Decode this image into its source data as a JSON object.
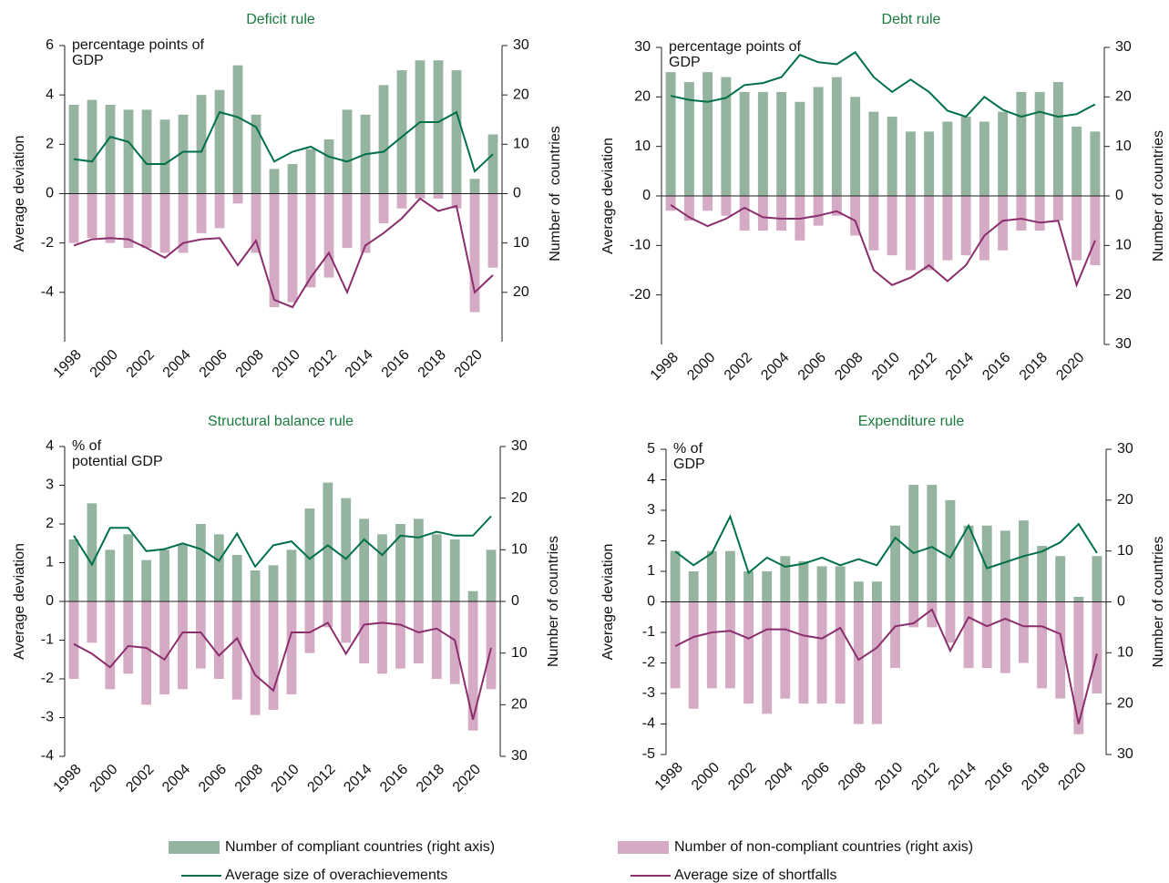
{
  "chart_data": [
    {
      "type": "combo",
      "title": "Deficit rule",
      "unit_label": [
        "percentage points of",
        "GDP"
      ],
      "ylabel": "Average deviation",
      "y2label": "Number of  countries",
      "x": [
        1998,
        1999,
        2000,
        2001,
        2002,
        2003,
        2004,
        2005,
        2006,
        2007,
        2008,
        2009,
        2010,
        2011,
        2012,
        2013,
        2014,
        2015,
        2016,
        2017,
        2018,
        2019,
        2020,
        2021
      ],
      "xticks": [
        1998,
        2000,
        2002,
        2004,
        2006,
        2008,
        2010,
        2012,
        2014,
        2016,
        2018,
        2020
      ],
      "ylim": [
        -6,
        6
      ],
      "yticks": [
        -4,
        -2,
        0,
        2,
        4,
        6
      ],
      "y2lim": [
        -30,
        30
      ],
      "y2ticks": [
        {
          "value": -20,
          "label": "20"
        },
        {
          "value": -10,
          "label": "10"
        },
        0,
        10,
        20,
        30
      ],
      "series": [
        {
          "name": "Number of compliant countries (right axis)",
          "type": "bar",
          "axis": "y2",
          "color": "#94b4a0",
          "values": [
            18,
            19,
            18,
            17,
            17,
            15,
            16,
            20,
            21,
            26,
            16,
            5,
            6,
            9,
            11,
            17,
            16,
            22,
            25,
            27,
            27,
            25,
            3,
            12
          ]
        },
        {
          "name": "Number of non-compliant countries (right axis)",
          "type": "bar",
          "axis": "y2",
          "color": "#d5aac4",
          "values": [
            -10,
            -9,
            -10,
            -11,
            -11,
            -12,
            -12,
            -8,
            -7,
            -2,
            -12,
            -23,
            -22,
            -19,
            -17,
            -11,
            -12,
            -6,
            -3,
            -1,
            -1,
            -3,
            -24,
            -15
          ]
        },
        {
          "name": "Average size of overachievements",
          "type": "line",
          "color": "#00704a",
          "values": [
            1.4,
            1.3,
            2.3,
            2.1,
            1.2,
            1.2,
            1.7,
            1.7,
            3.3,
            3.1,
            2.7,
            1.3,
            1.7,
            1.9,
            1.5,
            1.3,
            1.6,
            1.7,
            2.3,
            2.9,
            2.9,
            3.3,
            0.9,
            1.6
          ]
        },
        {
          "name": "Average size of shortfalls",
          "type": "line",
          "color": "#8a2e6e",
          "values": [
            -2.1,
            -1.85,
            -1.8,
            -1.85,
            -2.2,
            -2.6,
            -2.0,
            -1.85,
            -1.8,
            -2.9,
            -1.9,
            -4.3,
            -4.6,
            -3.4,
            -2.4,
            -4.0,
            -2.1,
            -1.6,
            -1.0,
            -0.2,
            -0.7,
            -0.5,
            -4.0,
            -3.3
          ]
        }
      ]
    },
    {
      "type": "combo",
      "title": "Debt rule",
      "unit_label": [
        "percentage points of",
        "GDP"
      ],
      "ylabel": "Average deviation",
      "y2label": "Number of countries",
      "x": [
        1998,
        1999,
        2000,
        2001,
        2002,
        2003,
        2004,
        2005,
        2006,
        2007,
        2008,
        2009,
        2010,
        2011,
        2012,
        2013,
        2014,
        2015,
        2016,
        2017,
        2018,
        2019,
        2020,
        2021
      ],
      "xticks": [
        1998,
        2000,
        2002,
        2004,
        2006,
        2008,
        2010,
        2012,
        2014,
        2016,
        2018,
        2020
      ],
      "ylim": [
        -30,
        30
      ],
      "yticks": [
        -20,
        -10,
        0,
        10,
        20,
        30
      ],
      "y2lim": [
        -30,
        30
      ],
      "y2ticks": [
        {
          "value": -30,
          "label": "30"
        },
        {
          "value": -20,
          "label": "20"
        },
        {
          "value": -10,
          "label": "10"
        },
        0,
        10,
        20,
        30
      ],
      "series": [
        {
          "name": "Number of compliant countries (right axis)",
          "type": "bar",
          "axis": "y2",
          "color": "#94b4a0",
          "values": [
            25,
            23,
            25,
            24,
            21,
            21,
            21,
            19,
            22,
            24,
            20,
            17,
            16,
            13,
            13,
            15,
            16,
            15,
            17,
            21,
            21,
            23,
            14,
            13
          ]
        },
        {
          "name": "Number of non-compliant countries (right axis)",
          "type": "bar",
          "axis": "y2",
          "color": "#d5aac4",
          "values": [
            -3,
            -5,
            -3,
            -4,
            -7,
            -7,
            -7,
            -9,
            -6,
            -4,
            -8,
            -11,
            -12,
            -15,
            -15,
            -13,
            -12,
            -13,
            -11,
            -7,
            -7,
            -5,
            -13,
            -14
          ]
        },
        {
          "name": "Average size of overachievements",
          "type": "line",
          "color": "#00704a",
          "values": [
            20.2,
            19.4,
            19,
            19.8,
            22.4,
            22.8,
            24,
            28.5,
            27,
            26.6,
            29,
            24,
            21,
            23.5,
            21,
            17.2,
            16,
            20,
            17.4,
            16,
            17,
            16,
            16.5,
            18.5
          ]
        },
        {
          "name": "Average size of shortfalls",
          "type": "line",
          "color": "#8a2e6e",
          "values": [
            -1.8,
            -4.3,
            -6.1,
            -4.6,
            -2.4,
            -4.3,
            -4.6,
            -4.6,
            -4,
            -3.1,
            -5,
            -15,
            -18,
            -16.5,
            -14,
            -17.2,
            -14,
            -8,
            -5,
            -4.6,
            -5.4,
            -5,
            -18,
            -9
          ]
        }
      ]
    },
    {
      "type": "combo",
      "title": "Structural balance rule",
      "unit_label": [
        "% of",
        "potential GDP"
      ],
      "ylabel": "Average deviation",
      "y2label": "Number of countries",
      "x": [
        1998,
        1999,
        2000,
        2001,
        2002,
        2003,
        2004,
        2005,
        2006,
        2007,
        2008,
        2009,
        2010,
        2011,
        2012,
        2013,
        2014,
        2015,
        2016,
        2017,
        2018,
        2019,
        2020,
        2021
      ],
      "xticks": [
        1998,
        2000,
        2002,
        2004,
        2006,
        2008,
        2010,
        2012,
        2014,
        2016,
        2018,
        2020
      ],
      "ylim": [
        -4,
        4
      ],
      "yticks": [
        -4,
        -3,
        -2,
        -1,
        0,
        1,
        2,
        3,
        4
      ],
      "y2lim": [
        -30,
        30
      ],
      "y2ticks": [
        {
          "value": -30,
          "label": "30"
        },
        {
          "value": -20,
          "label": "20"
        },
        {
          "value": -10,
          "label": "10"
        },
        0,
        10,
        20,
        30
      ],
      "series": [
        {
          "name": "Number of compliant countries (right axis)",
          "type": "bar",
          "axis": "y2",
          "color": "#94b4a0",
          "values": [
            12,
            19,
            10,
            13,
            8,
            10,
            11,
            15,
            13,
            9,
            6,
            7,
            10,
            18,
            23,
            20,
            16,
            13,
            15,
            16,
            13,
            12,
            2,
            10
          ]
        },
        {
          "name": "Number of non-compliant countries (right axis)",
          "type": "bar",
          "axis": "y2",
          "color": "#d5aac4",
          "values": [
            -15,
            -8,
            -17,
            -14,
            -20,
            -18,
            -17,
            -13,
            -15,
            -19,
            -22,
            -21,
            -18,
            -10,
            -5,
            -8,
            -12,
            -14,
            -13,
            -12,
            -15,
            -16,
            -25,
            -17
          ]
        },
        {
          "name": "Average size of overachievements",
          "type": "line",
          "color": "#00704a",
          "values": [
            1.7,
            0.95,
            1.9,
            1.9,
            1.3,
            1.35,
            1.5,
            1.35,
            1.05,
            1.75,
            0.9,
            1.45,
            1.55,
            1.1,
            1.45,
            1.1,
            1.6,
            1.2,
            1.7,
            1.65,
            1.8,
            1.7,
            1.7,
            2.2
          ]
        },
        {
          "name": "Average size of shortfalls",
          "type": "line",
          "color": "#8a2e6e",
          "values": [
            -1.1,
            -1.35,
            -1.7,
            -1.15,
            -1.2,
            -1.5,
            -0.8,
            -0.8,
            -1.4,
            -0.95,
            -1.9,
            -2.3,
            -0.8,
            -0.8,
            -0.55,
            -1.35,
            -0.6,
            -0.55,
            -0.6,
            -0.8,
            -0.7,
            -1.0,
            -3.05,
            -1.2
          ]
        }
      ]
    },
    {
      "type": "combo",
      "title": "Expenditure rule",
      "unit_label": [
        "% of",
        "GDP"
      ],
      "ylabel": "Average deviation",
      "y2label": "Number of countries",
      "x": [
        1998,
        1999,
        2000,
        2001,
        2002,
        2003,
        2004,
        2005,
        2006,
        2007,
        2008,
        2009,
        2010,
        2011,
        2012,
        2013,
        2014,
        2015,
        2016,
        2017,
        2018,
        2019,
        2020,
        2021
      ],
      "xticks": [
        1998,
        2000,
        2002,
        2004,
        2006,
        2008,
        2010,
        2012,
        2014,
        2016,
        2018,
        2020
      ],
      "ylim": [
        -5,
        5
      ],
      "yticks": [
        -5,
        -4,
        -3,
        -2,
        -1,
        0,
        1,
        2,
        3,
        4,
        5
      ],
      "y2lim": [
        -30,
        30
      ],
      "y2ticks": [
        {
          "value": -30,
          "label": "30"
        },
        {
          "value": -20,
          "label": "20"
        },
        {
          "value": -10,
          "label": "10"
        },
        0,
        10,
        20,
        30
      ],
      "series": [
        {
          "name": "Number of compliant countries (right axis)",
          "type": "bar",
          "axis": "y2",
          "color": "#94b4a0",
          "values": [
            10,
            6,
            10,
            10,
            6,
            6,
            9,
            8,
            7,
            7,
            4,
            4,
            15,
            23,
            23,
            20,
            15,
            15,
            14,
            16,
            11,
            9,
            1,
            9
          ]
        },
        {
          "name": "Number of non-compliant countries (right axis)",
          "type": "bar",
          "axis": "y2",
          "color": "#d5aac4",
          "values": [
            -17,
            -21,
            -17,
            -17,
            -20,
            -22,
            -19,
            -20,
            -20,
            -20,
            -24,
            -24,
            -13,
            -5,
            -5,
            -8,
            -13,
            -13,
            -14,
            -12,
            -17,
            -19,
            -26,
            -18
          ]
        },
        {
          "name": "Average size of overachievements",
          "type": "line",
          "color": "#00704a",
          "values": [
            1.65,
            1.2,
            1.6,
            2.8,
            0.95,
            1.45,
            1.15,
            1.25,
            1.45,
            1.2,
            1.4,
            1.2,
            2.1,
            1.6,
            1.8,
            1.45,
            2.5,
            1.1,
            1.3,
            1.5,
            1.65,
            1.95,
            2.55,
            1.6
          ]
        },
        {
          "name": "Average size of shortfalls",
          "type": "line",
          "color": "#8a2e6e",
          "values": [
            -1.45,
            -1.15,
            -1.0,
            -0.95,
            -1.2,
            -0.9,
            -0.9,
            -1.1,
            -1.2,
            -0.85,
            -1.9,
            -1.5,
            -0.8,
            -0.7,
            -0.25,
            -1.6,
            -0.5,
            -0.8,
            -0.55,
            -0.8,
            -0.8,
            -1.05,
            -4.0,
            -1.7
          ]
        }
      ]
    }
  ]
}
